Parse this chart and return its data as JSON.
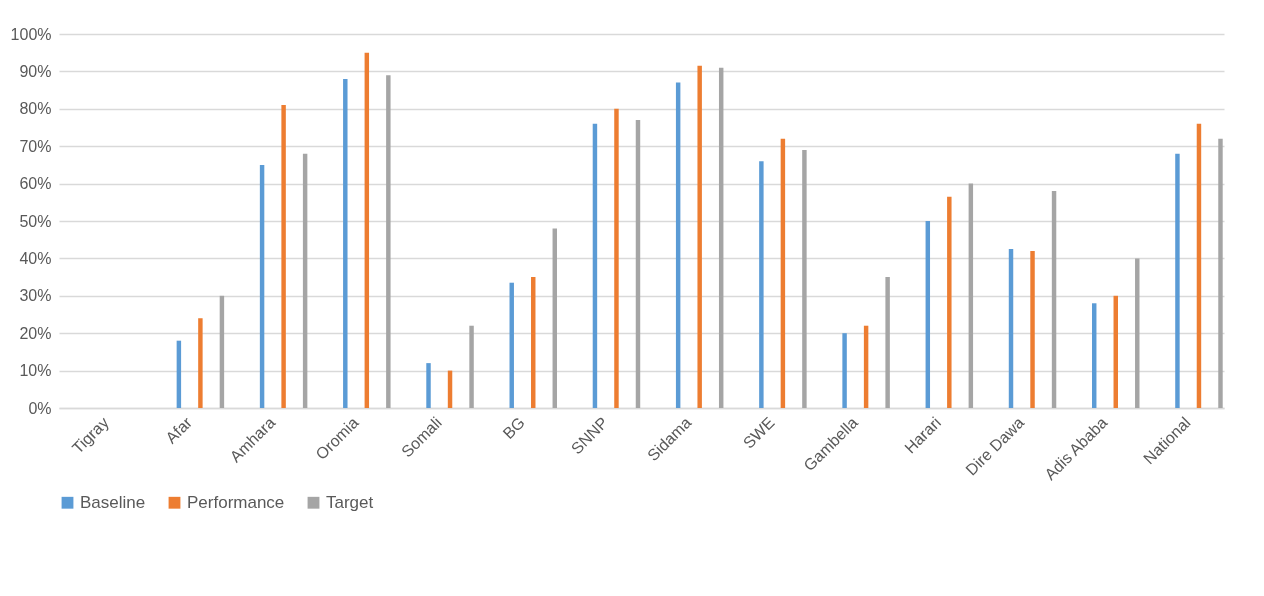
{
  "chart_data": {
    "type": "bar",
    "categories": [
      "Tigray",
      "Afar",
      "Amhara",
      "Oromia",
      "Somali",
      "BG",
      "SNNP",
      "Sidama",
      "SWE",
      "Gambella",
      "Harari",
      "Dire Dawa",
      "Adis Ababa",
      "National"
    ],
    "series": [
      {
        "name": "Baseline",
        "color": "#5b9bd5",
        "values": [
          null,
          18,
          65,
          88,
          12,
          33.5,
          76,
          87,
          66,
          20,
          50,
          42.5,
          28,
          68
        ]
      },
      {
        "name": "Performance",
        "color": "#ed7d31",
        "values": [
          null,
          24,
          81,
          95,
          10,
          35,
          80,
          91.5,
          72,
          22,
          56.5,
          42,
          30,
          76
        ]
      },
      {
        "name": "Target",
        "color": "#a5a5a5",
        "values": [
          null,
          30,
          68,
          89,
          22,
          48,
          77,
          91,
          69,
          35,
          60,
          58,
          40,
          72
        ]
      }
    ],
    "ylim": [
      0,
      100
    ],
    "yticks": [
      {
        "value": 0,
        "label": "0%"
      },
      {
        "value": 10,
        "label": "10%"
      },
      {
        "value": 20,
        "label": "20%"
      },
      {
        "value": 30,
        "label": "30%"
      },
      {
        "value": 40,
        "label": "40%"
      },
      {
        "value": 50,
        "label": "50%"
      },
      {
        "value": 60,
        "label": "60%"
      },
      {
        "value": 70,
        "label": "70%"
      },
      {
        "value": 80,
        "label": "80%"
      },
      {
        "value": 90,
        "label": "90%"
      },
      {
        "value": 100,
        "label": "100%"
      }
    ],
    "grid": "y",
    "legend": "bottom"
  }
}
